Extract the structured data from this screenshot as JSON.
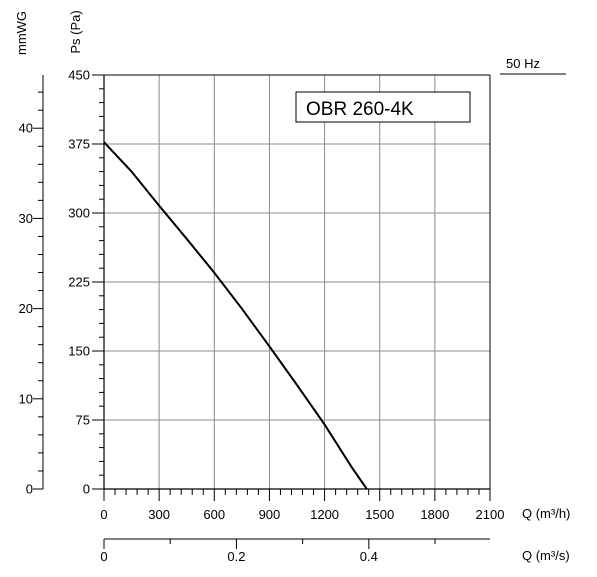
{
  "chart_data": {
    "type": "line",
    "title": "OBR 260-4K",
    "frequency_label": "50 Hz",
    "ylabel": "Ps (Pa)",
    "ylabel_secondary": "mmWG",
    "xlabel": "Q (m³/h)",
    "xlabel_secondary": "Q (m³/s)",
    "xlim": [
      0,
      2100
    ],
    "ylim": [
      0,
      450
    ],
    "x_ticks": [
      0,
      300,
      600,
      900,
      1200,
      1500,
      1800,
      2100
    ],
    "y_ticks": [
      0,
      75,
      150,
      225,
      300,
      375,
      450
    ],
    "y2_ticks": [
      0,
      10,
      20,
      30,
      40
    ],
    "y2_range": [
      0,
      45.9
    ],
    "x2_ticks": [
      "0",
      "0.2",
      "0.4"
    ],
    "x2_values": [
      0,
      0.2,
      0.4
    ],
    "x2_range": [
      0,
      0.583
    ],
    "grid": true,
    "series": [
      {
        "x": [
          0,
          150,
          300,
          450,
          600,
          750,
          900,
          1050,
          1200,
          1350,
          1430
        ],
        "values": [
          377,
          345,
          308,
          272,
          235,
          196,
          155,
          113,
          70,
          23,
          0
        ]
      }
    ]
  }
}
